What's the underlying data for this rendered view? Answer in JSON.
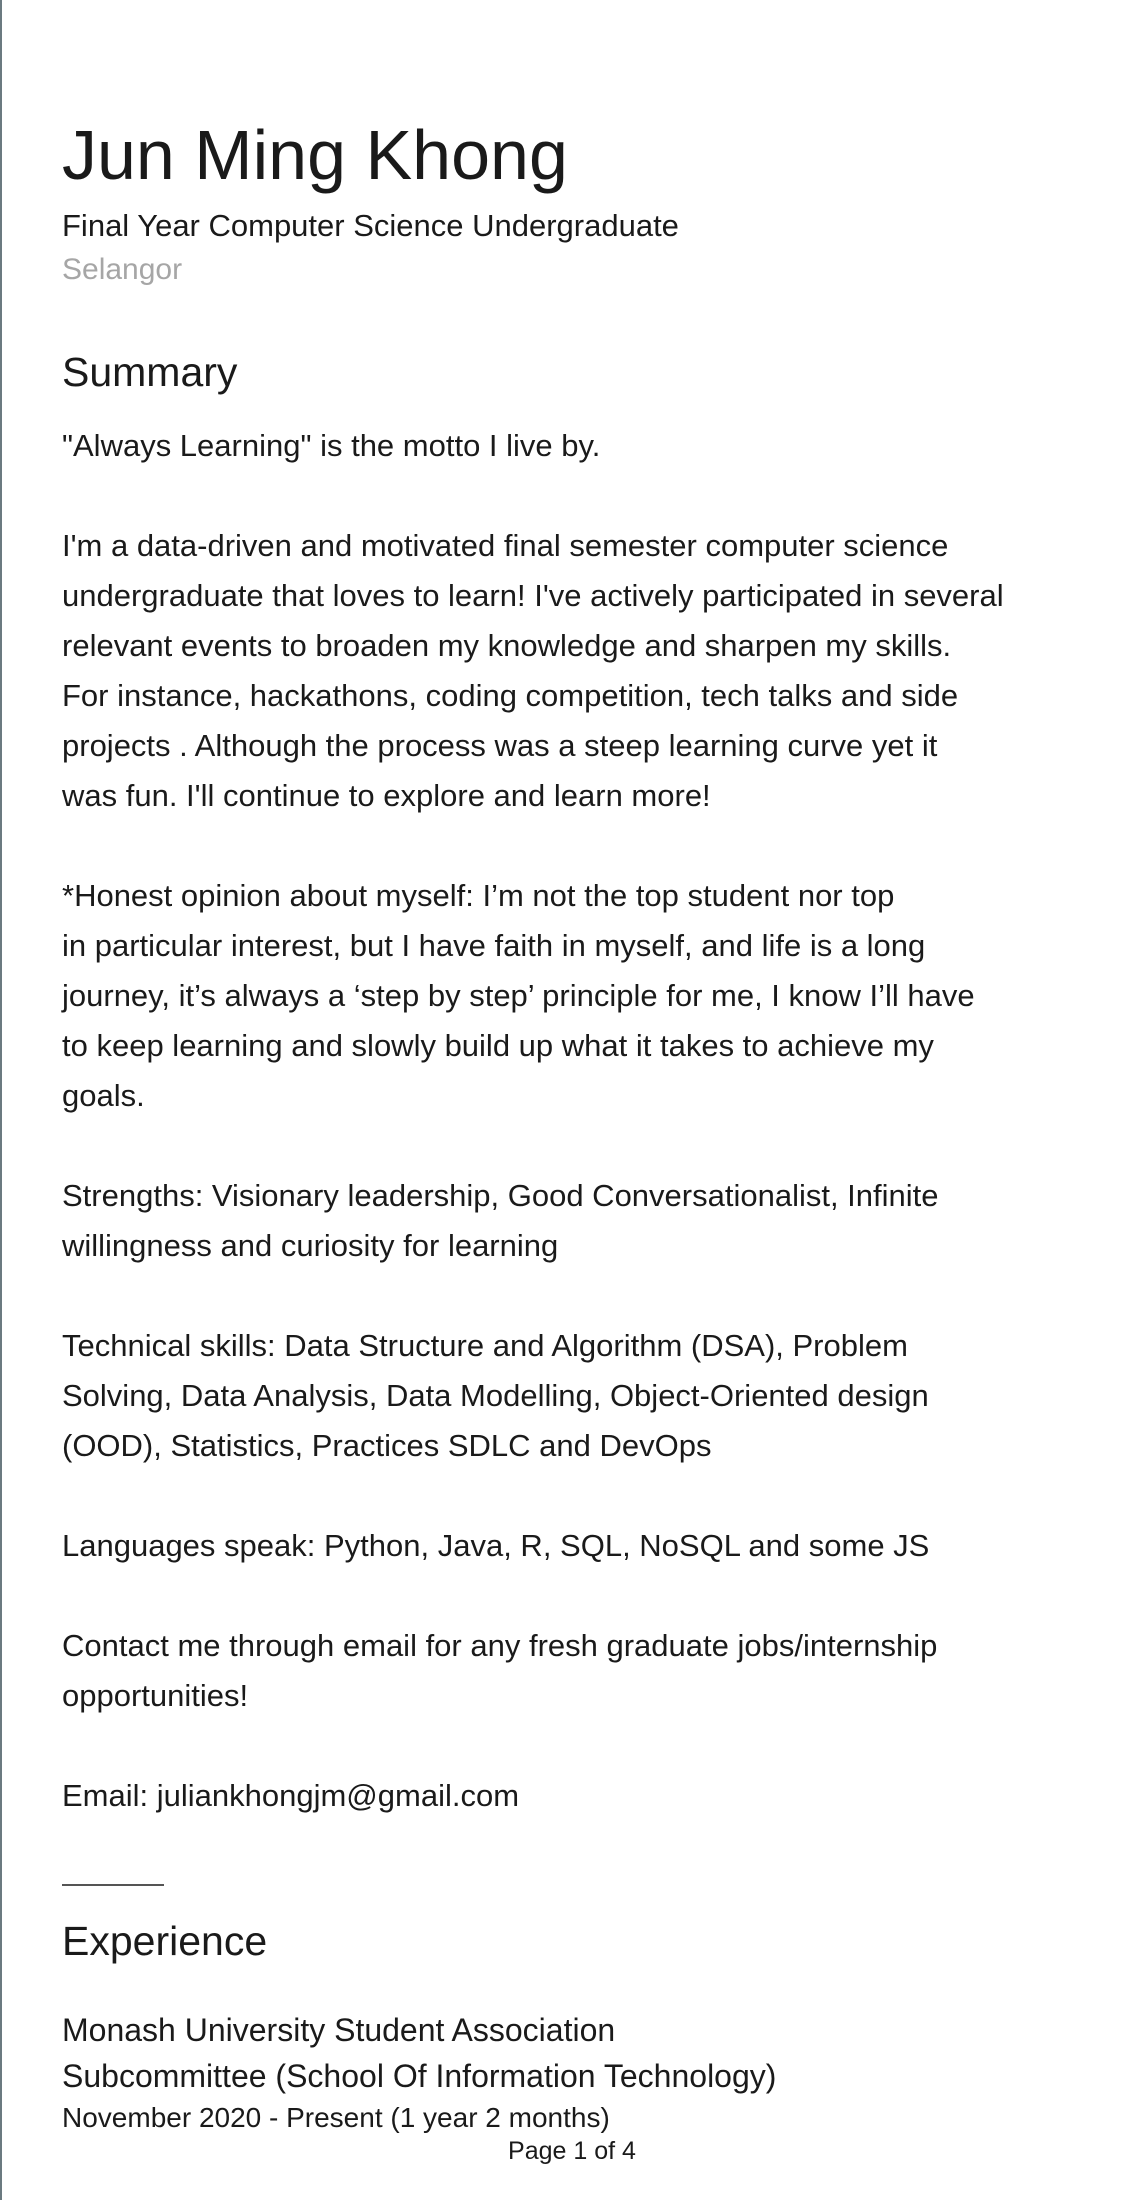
{
  "header": {
    "name": "Jun Ming Khong",
    "headline": "Final Year Computer Science Undergraduate",
    "location": "Selangor"
  },
  "summary": {
    "title": "Summary",
    "lines": [
      "\"Always Learning\" is the motto I live by.",
      "",
      "I'm a data-driven and motivated final semester computer science",
      "undergraduate that loves to learn! I've actively participated in several",
      "relevant events to broaden my knowledge and sharpen my skills.",
      "For instance, hackathons, coding competition, tech talks and side",
      "projects .  Although the process was a steep learning curve yet it",
      "was fun. I'll continue to explore and learn more!",
      "",
      "*Honest opinion about myself: I’m not the top student nor top",
      "in particular interest, but I have faith in myself, and life is a long",
      "journey, it’s always a ‘step by step’ principle for me, I know I’ll have",
      "to keep learning and slowly build up what it takes to achieve my",
      "goals.",
      "",
      "Strengths: Visionary leadership, Good Conversationalist, Infinite",
      "willingness and curiosity for learning",
      "",
      "Technical skills: Data Structure and Algorithm (DSA), Problem",
      "Solving, Data Analysis, Data Modelling, Object-Oriented design",
      "(OOD), Statistics, Practices SDLC and DevOps",
      "",
      "Languages speak: Python, Java, R, SQL, NoSQL and some JS",
      "",
      "Contact me through email for any fresh graduate jobs/internship",
      "opportunities!",
      "",
      "Email: juliankhongjm@gmail.com"
    ]
  },
  "experience": {
    "title": "Experience",
    "entries": [
      {
        "organization": "Monash University Student Association",
        "role": "Subcommittee (School Of Information Technology)",
        "dates": "November 2020 - Present (1 year 2 months)"
      }
    ]
  },
  "footer": {
    "page_label": "Page 1 of 4"
  }
}
